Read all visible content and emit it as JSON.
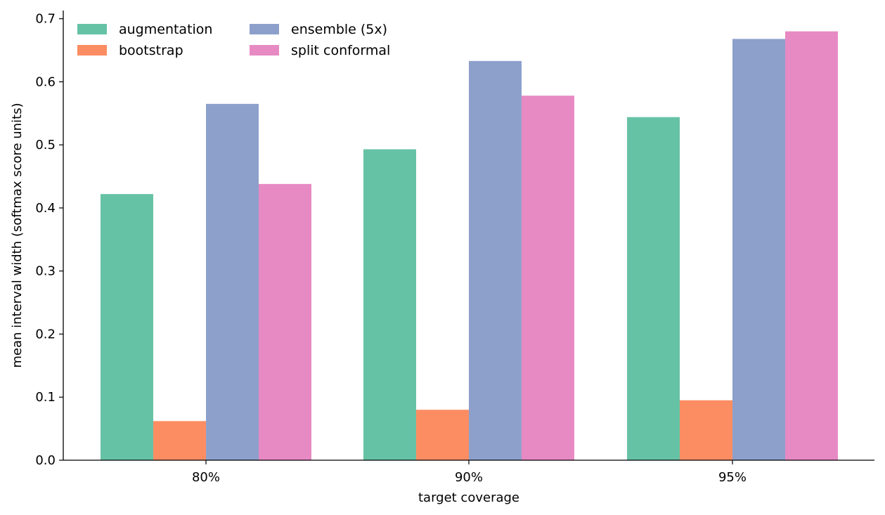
{
  "chart_data": {
    "type": "bar",
    "title": "",
    "xlabel": "target coverage",
    "ylabel": "mean interval width (softmax score units)",
    "categories": [
      "80%",
      "90%",
      "95%"
    ],
    "series": [
      {
        "name": "augmentation",
        "color": "#66c2a5",
        "values": [
          0.422,
          0.493,
          0.544
        ]
      },
      {
        "name": "bootstrap",
        "color": "#fc8d62",
        "values": [
          0.062,
          0.08,
          0.095
        ]
      },
      {
        "name": "ensemble (5x)",
        "color": "#8da0cb",
        "values": [
          0.565,
          0.633,
          0.668
        ]
      },
      {
        "name": "split conformal",
        "color": "#e78ac3",
        "values": [
          0.438,
          0.578,
          0.68
        ]
      }
    ],
    "ylim": [
      0,
      0.713
    ],
    "yticks": [
      "0.0",
      "0.1",
      "0.2",
      "0.3",
      "0.4",
      "0.5",
      "0.6",
      "0.7"
    ],
    "grid": false,
    "legend": "top-left, 2 columns"
  }
}
